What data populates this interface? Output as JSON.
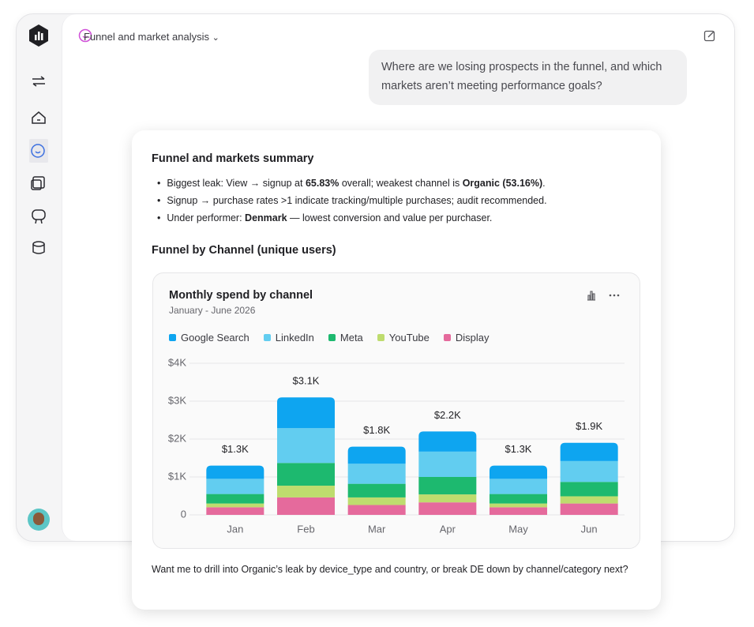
{
  "header": {
    "title": "Funnel and market analysis"
  },
  "user_message": "Where are we losing prospects in the funnel, and which markets aren’t meeting performance goals?",
  "card": {
    "title": "Funnel and markets summary",
    "bullets": [
      {
        "parts": [
          {
            "text": "Biggest leak: View → signup at "
          },
          {
            "text": "65.83%",
            "bold": true
          },
          {
            "text": " overall; weakest channel is "
          },
          {
            "text": "Organic (53.16%)",
            "bold": true
          },
          {
            "text": "."
          }
        ]
      },
      {
        "parts": [
          {
            "text": "Signup → purchase rates >1 indicate tracking/multiple purchases; audit recommended."
          }
        ]
      },
      {
        "parts": [
          {
            "text": "Under performer: "
          },
          {
            "text": "Denmark",
            "bold": true
          },
          {
            "text": " — lowest conversion and value per purchaser."
          }
        ]
      }
    ],
    "section_title": "Funnel by Channel (unique users)",
    "footer": "Want me to drill into Organic’s leak by device_type and country, or break DE down by channel/category next?"
  },
  "chart_data": {
    "type": "stacked_bar",
    "title": "Monthly spend by channel",
    "subtitle": "January - June 2026",
    "categories": [
      "Jan",
      "Feb",
      "Mar",
      "Apr",
      "May",
      "Jun"
    ],
    "series": [
      {
        "name": "Google Search",
        "color": "#0ea5f0",
        "values": [
          350,
          810,
          450,
          530,
          350,
          480
        ]
      },
      {
        "name": "LinkedIn",
        "color": "#62cdf0",
        "values": [
          400,
          920,
          530,
          670,
          400,
          550
        ]
      },
      {
        "name": "Meta",
        "color": "#1db96f",
        "values": [
          250,
          600,
          360,
          460,
          250,
          380
        ]
      },
      {
        "name": "YouTube",
        "color": "#bedc6e",
        "values": [
          100,
          310,
          200,
          210,
          100,
          190
        ]
      },
      {
        "name": "Display",
        "color": "#e56a9c",
        "values": [
          200,
          460,
          260,
          330,
          200,
          300
        ]
      }
    ],
    "totals": [
      1300,
      3100,
      1800,
      2200,
      1300,
      1900
    ],
    "total_labels": [
      "$1.3K",
      "$3.1K",
      "$1.8K",
      "$2.2K",
      "$1.3K",
      "$1.9K"
    ],
    "ylim": [
      0,
      4000
    ],
    "yticks": [
      0,
      {
        "value": 1000,
        "label": "$1K"
      },
      {
        "value": 2000,
        "label": "$2K"
      },
      {
        "value": 3000,
        "label": "$3K"
      },
      {
        "value": 4000,
        "label": "$4K"
      }
    ],
    "grid": true
  }
}
